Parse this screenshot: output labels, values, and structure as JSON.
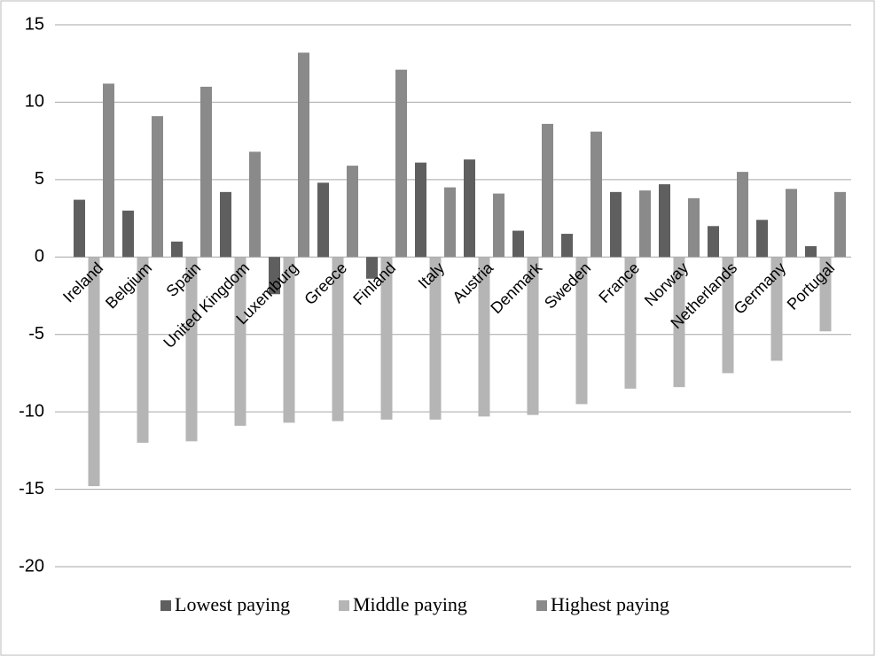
{
  "chart_data": {
    "type": "bar",
    "categories": [
      "Ireland",
      "Belgium",
      "Spain",
      "United Kingdom",
      "Luxemburg",
      "Greece",
      "Finland",
      "Italy",
      "Austria",
      "Denmark",
      "Sweden",
      "France",
      "Norway",
      "Netherlands",
      "Germany",
      "Portugal"
    ],
    "series": [
      {
        "name": "Lowest paying",
        "color": "#5f5f5f",
        "values": [
          3.7,
          3.0,
          1.0,
          4.2,
          -2.4,
          4.8,
          -1.4,
          6.1,
          6.3,
          1.7,
          1.5,
          4.2,
          4.7,
          2.0,
          2.4,
          0.7
        ]
      },
      {
        "name": "Middle paying",
        "color": "#b5b5b5",
        "values": [
          -14.8,
          -12.0,
          -11.9,
          -10.9,
          -10.7,
          -10.6,
          -10.5,
          -10.5,
          -10.3,
          -10.2,
          -9.5,
          -8.5,
          -8.4,
          -7.5,
          -6.7,
          -4.8
        ]
      },
      {
        "name": "Highest paying",
        "color": "#8a8a8a",
        "values": [
          11.2,
          9.1,
          11.0,
          6.8,
          13.2,
          5.9,
          12.1,
          4.5,
          4.1,
          8.6,
          8.1,
          4.3,
          3.8,
          5.5,
          4.4,
          4.2
        ]
      }
    ],
    "ylim": [
      -20,
      15
    ],
    "yticks": [
      -20,
      -15,
      -10,
      -5,
      0,
      5,
      10,
      15
    ],
    "grid": true,
    "legend": "bottom"
  }
}
